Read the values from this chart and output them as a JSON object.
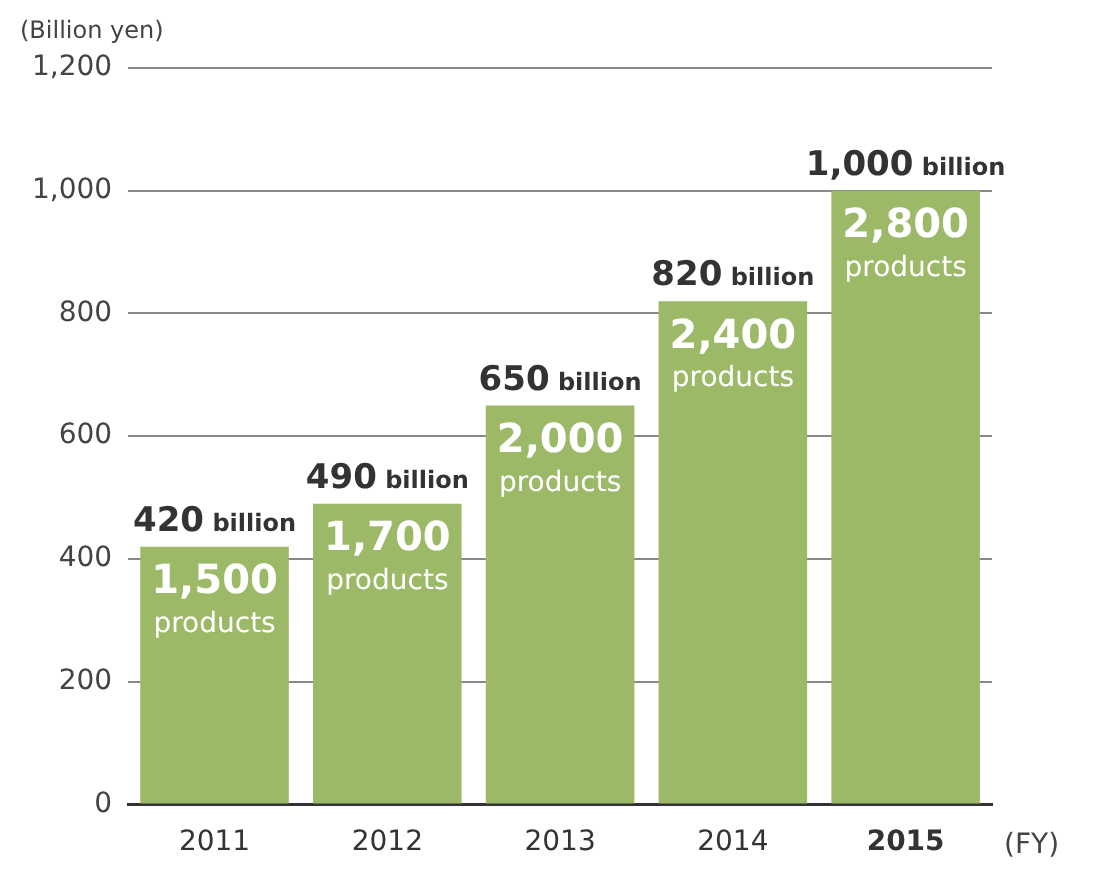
{
  "chart_data": {
    "type": "bar",
    "ylabel": "(Billion yen)",
    "xlabel": "(FY)",
    "categories": [
      "2011",
      "2012",
      "2013",
      "2014",
      "2015"
    ],
    "values": [
      420,
      490,
      650,
      820,
      1000
    ],
    "value_labels": [
      "420 billion",
      "490 billion",
      "650 billion",
      "820 billion",
      "1,000 billion"
    ],
    "color": "#9cb967",
    "ylim": [
      0,
      1200
    ],
    "yticks": [
      {
        "value": 0,
        "label": "0"
      },
      {
        "value": 200,
        "label": "200"
      },
      {
        "value": 400,
        "label": "400"
      },
      {
        "value": 600,
        "label": "600"
      },
      {
        "value": 800,
        "label": "800"
      },
      {
        "value": 1000,
        "label": "1,000"
      },
      {
        "value": 1200,
        "label": "1,200"
      }
    ],
    "grid": "y",
    "legend": false,
    "annotations": [
      "1,500 products",
      "1,700 products",
      "2,000 products",
      "2,400 products",
      "2,800 products"
    ]
  }
}
